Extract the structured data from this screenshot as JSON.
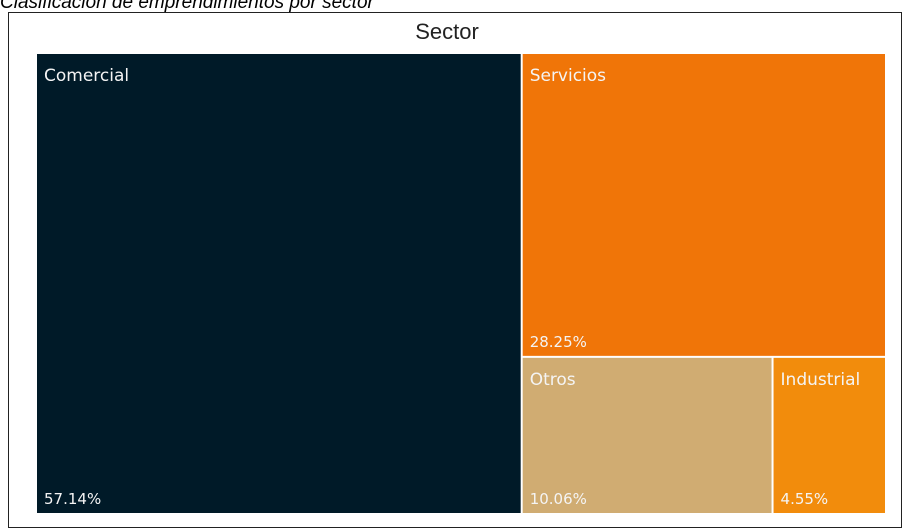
{
  "caption": "Clasificación de emprendimientos por sector",
  "chart_data": {
    "type": "treemap",
    "title": "Sector",
    "items": [
      {
        "label": "Comercial",
        "value": 57.14,
        "value_label": "57.14%",
        "color": "#001a28"
      },
      {
        "label": "Servicios",
        "value": 28.25,
        "value_label": "28.25%",
        "color": "#f07508"
      },
      {
        "label": "Otros",
        "value": 10.06,
        "value_label": "10.06%",
        "color": "#d0ac72"
      },
      {
        "label": "Industrial",
        "value": 4.55,
        "value_label": "4.55%",
        "color": "#f28c0c"
      }
    ]
  }
}
